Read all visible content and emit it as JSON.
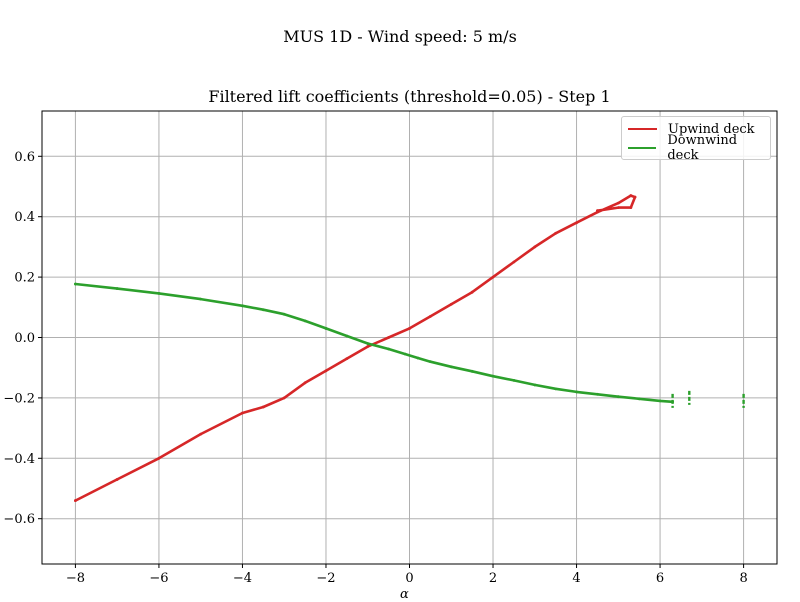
{
  "suptitle": "MUS 1D - Wind speed: 5 m/s",
  "chart_data": {
    "type": "line",
    "title": "Filtered lift coefficients (threshold=0.05) - Step 1",
    "xlabel": "α",
    "ylabel": "",
    "xlim": [
      -8.8,
      8.8
    ],
    "ylim": [
      -0.75,
      0.75
    ],
    "xticks": [
      -8,
      -6,
      -4,
      -2,
      0,
      2,
      4,
      6,
      8
    ],
    "xtick_labels": [
      "−8",
      "−6",
      "−4",
      "−2",
      "0",
      "2",
      "4",
      "6",
      "8"
    ],
    "yticks": [
      -0.6,
      -0.4,
      -0.2,
      0.0,
      0.2,
      0.4,
      0.6
    ],
    "ytick_labels": [
      "−0.6",
      "−0.4",
      "−0.2",
      "0.0",
      "0.2",
      "0.4",
      "0.6"
    ],
    "grid": true,
    "legend_position": "top-right",
    "series": [
      {
        "name": "Upwind deck",
        "color": "#d62728",
        "x": [
          -8,
          -7,
          -6,
          -5,
          -4,
          -3.5,
          -3,
          -2.5,
          -2,
          -1.5,
          -1,
          -0.5,
          0,
          0.5,
          1,
          1.5,
          2,
          2.5,
          3,
          3.5,
          4,
          4.5,
          5,
          5.3,
          5.4,
          5.3,
          5,
          4.5
        ],
        "y": [
          -0.54,
          -0.47,
          -0.4,
          -0.32,
          -0.25,
          -0.23,
          -0.2,
          -0.15,
          -0.11,
          -0.07,
          -0.03,
          0.0,
          0.03,
          0.07,
          0.11,
          0.15,
          0.2,
          0.25,
          0.3,
          0.345,
          0.38,
          0.415,
          0.445,
          0.47,
          0.465,
          0.43,
          0.43,
          0.42
        ]
      },
      {
        "name": "Downwind deck",
        "color": "#2ca02c",
        "x": [
          -8,
          -7,
          -6,
          -5,
          -4,
          -3.5,
          -3,
          -2.5,
          -2,
          -1.5,
          -1,
          -0.5,
          -0.1,
          0.2,
          0.5,
          1,
          1.5,
          2,
          2.5,
          3,
          3.5,
          4,
          4.5,
          5,
          5.5,
          6,
          6.3
        ],
        "y": [
          0.177,
          0.162,
          0.146,
          0.127,
          0.105,
          0.092,
          0.077,
          0.055,
          0.03,
          0.005,
          -0.02,
          -0.038,
          -0.055,
          -0.068,
          -0.08,
          -0.097,
          -0.112,
          -0.128,
          -0.142,
          -0.157,
          -0.17,
          -0.18,
          -0.188,
          -0.196,
          -0.203,
          -0.21,
          -0.213
        ],
        "outliers": [
          [
            6.3,
            -0.21
          ],
          [
            6.7,
            -0.2
          ],
          [
            8.0,
            -0.21
          ]
        ]
      }
    ]
  }
}
